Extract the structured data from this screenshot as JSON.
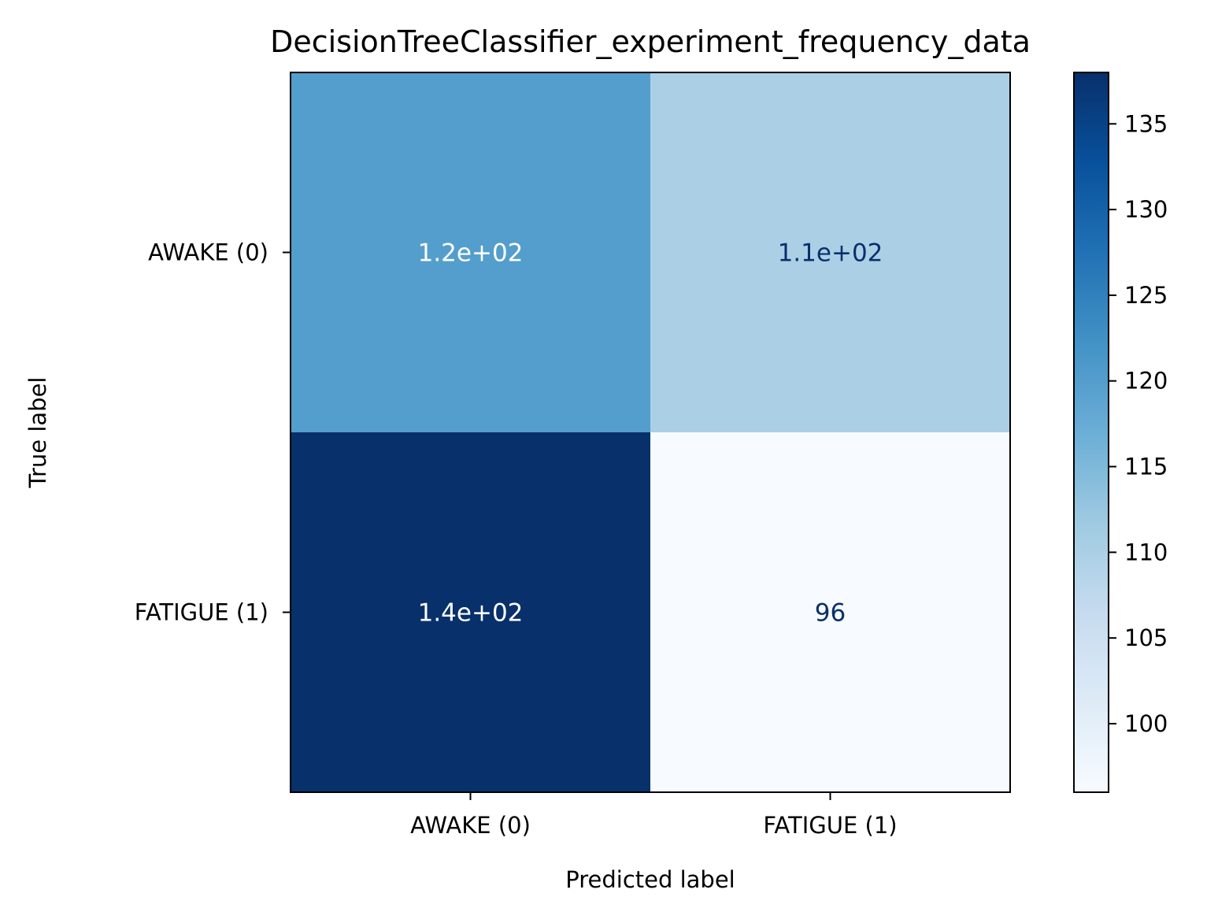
{
  "chart_data": {
    "type": "heatmap",
    "title": "DecisionTreeClassifier_experiment_frequency_data",
    "xlabel": "Predicted label",
    "ylabel": "True label",
    "x_categories": [
      "AWAKE (0)",
      "FATIGUE (1)"
    ],
    "y_categories": [
      "AWAKE (0)",
      "FATIGUE (1)"
    ],
    "values": [
      [
        120,
        110
      ],
      [
        138,
        96
      ]
    ],
    "cell_labels": [
      [
        "1.2e+02",
        "1.1e+02"
      ],
      [
        "1.4e+02",
        "96"
      ]
    ],
    "colormap": "Blues",
    "colorbar": {
      "range": [
        96,
        138
      ],
      "ticks": [
        100,
        105,
        110,
        115,
        120,
        125,
        130,
        135
      ],
      "tick_labels": [
        "100",
        "105",
        "110",
        "115",
        "120",
        "125",
        "130",
        "135"
      ]
    },
    "text_colors": {
      "on_dark": "#ffffff",
      "on_light": "#08306b"
    }
  }
}
